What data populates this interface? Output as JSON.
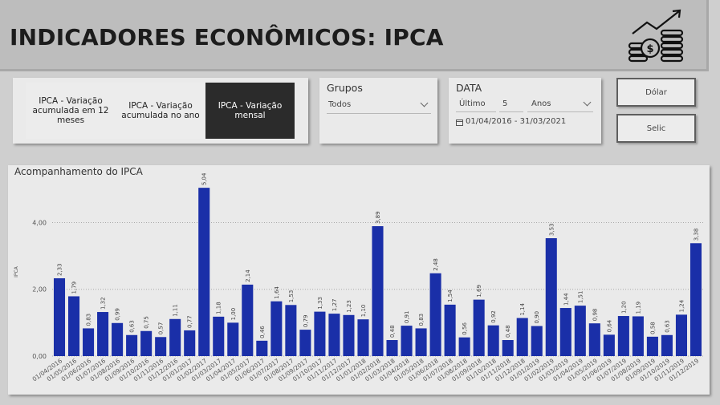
{
  "header": {
    "title": "INDICADORES ECONÔMICOS: IPCA"
  },
  "tabs": [
    {
      "label": "IPCA - Variação acumulada em 12 meses",
      "selected": false
    },
    {
      "label": "IPCA - Variação acumulada no ano",
      "selected": false
    },
    {
      "label": "IPCA - Variação mensal",
      "selected": true
    }
  ],
  "groups": {
    "title": "Grupos",
    "value": "Todos"
  },
  "date_filter": {
    "title": "DATA",
    "relative": "Último",
    "count": "5",
    "unit": "Anos",
    "range": "01/04/2016 - 31/03/2021"
  },
  "buttons": {
    "dolar": "Dólar",
    "selic": "Selic"
  },
  "colors": {
    "bar": "#1a2fa8",
    "selected_tab": "#2b2b2b"
  },
  "chart_data": {
    "type": "bar",
    "title": "Acompanhamento do IPCA",
    "ylabel": "IPCA",
    "ylim": [
      0,
      5.5
    ],
    "yticks": [
      "0,00",
      "2,00",
      "4,00"
    ],
    "ytick_values": [
      0,
      2,
      4
    ],
    "categories": [
      "01/04/2016",
      "01/05/2016",
      "01/06/2016",
      "01/07/2016",
      "01/08/2016",
      "01/09/2016",
      "01/10/2016",
      "01/11/2016",
      "01/12/2016",
      "01/01/2017",
      "01/02/2017",
      "01/03/2017",
      "01/04/2017",
      "01/05/2017",
      "01/06/2017",
      "01/07/2017",
      "01/08/2017",
      "01/09/2017",
      "01/10/2017",
      "01/11/2017",
      "01/12/2017",
      "01/01/2018",
      "01/02/2018",
      "01/03/2018",
      "01/04/2018",
      "01/05/2018",
      "01/06/2018",
      "01/07/2018",
      "01/08/2018",
      "01/09/2018",
      "01/10/2018",
      "01/11/2018",
      "01/12/2018",
      "01/01/2019",
      "01/02/2019",
      "01/03/2019",
      "01/04/2019",
      "01/05/2019",
      "01/06/2019",
      "01/07/2019",
      "01/08/2019",
      "01/09/2019",
      "01/10/2019",
      "01/11/2019",
      "01/12/2019"
    ],
    "values": [
      2.33,
      1.79,
      0.83,
      1.32,
      0.99,
      0.63,
      0.75,
      0.57,
      1.11,
      0.77,
      5.04,
      1.18,
      1.0,
      2.14,
      0.46,
      1.64,
      1.53,
      0.79,
      1.33,
      1.27,
      1.23,
      1.1,
      3.89,
      0.48,
      0.91,
      0.83,
      2.48,
      1.54,
      0.56,
      1.69,
      0.92,
      0.48,
      1.14,
      0.9,
      3.53,
      1.44,
      1.51,
      0.98,
      0.64,
      1.2,
      1.19,
      0.58,
      0.63,
      1.24,
      3.38
    ],
    "data_labels": [
      "2,33",
      "1,79",
      "0,83",
      "1,32",
      "0,99",
      "0,63",
      "0,75",
      "0,57",
      "1,11",
      "0,77",
      "5,04",
      "1,18",
      "1,00",
      "2,14",
      "0,46",
      "1,64",
      "1,53",
      "0,79",
      "1,33",
      "1,27",
      "1,23",
      "1,10",
      "3,89",
      "0,48",
      "0,91",
      "0,83",
      "2,48",
      "1,54",
      "0,56",
      "1,69",
      "0,92",
      "0,48",
      "1,14",
      "0,90",
      "3,53",
      "1,44",
      "1,51",
      "0,98",
      "0,64",
      "1,20",
      "1,19",
      "0,58",
      "0,63",
      "1,24",
      "3,38"
    ],
    "xtick_labels": [
      "01/04/2016",
      "01/05/2016",
      "01/06/2016",
      "01/07/2016",
      "01/08/2016",
      "01/09/2016",
      "01/10/2016",
      "01/11/2016",
      "01/12/2016",
      "01/01/2017",
      "01/02/2017",
      "01/03/2017",
      "01/04/2017",
      "01/05/2017",
      "01/06/2017",
      "01/07/2017",
      "01/08/2017",
      "01/09/2017",
      "01/10/2017",
      "01/11/2017",
      "01/12/2017",
      "01/01/2018",
      "01/02/2018",
      "01/03/2018",
      "01/04/2018",
      "01/05/2018",
      "01/06/2018",
      "01/07/2018",
      "01/08/2018",
      "01/09/2018",
      "01/10/2018",
      "01/11/2018",
      "01/12/2018",
      "01/01/2019",
      "01/02/2019",
      "01/03/2019",
      "01/04/2019",
      "01/05/2019",
      "01/06/2019",
      "01/07/2019",
      "01/08/2019",
      "01/09/2019",
      "01/10/2019",
      "01/11/2019",
      "01/12/2019"
    ],
    "grid": true,
    "legend": "none"
  }
}
